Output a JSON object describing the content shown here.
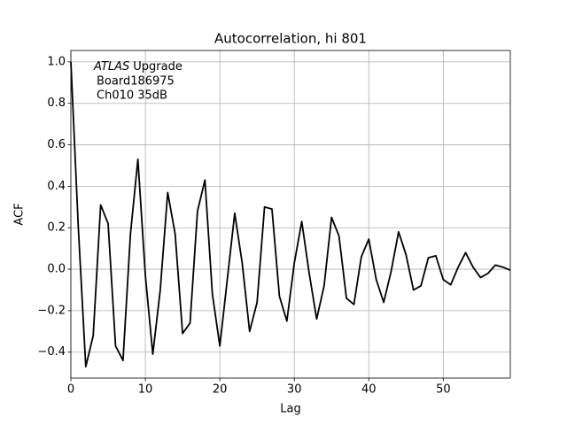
{
  "chart_data": {
    "type": "line",
    "title": "Autocorrelation, hi 801",
    "x_label": "Lag",
    "y_label": "ACF",
    "annotation": {
      "emphasis": "ATLAS",
      "lines": [
        "Upgrade",
        "Board186975",
        "Ch010 35dB"
      ]
    },
    "x": [
      0,
      1,
      2,
      3,
      4,
      5,
      6,
      7,
      8,
      9,
      10,
      11,
      12,
      13,
      14,
      15,
      16,
      17,
      18,
      19,
      20,
      21,
      22,
      23,
      24,
      25,
      26,
      27,
      28,
      29,
      30,
      31,
      32,
      33,
      34,
      35,
      36,
      37,
      38,
      39,
      40,
      41,
      42,
      43,
      44,
      45,
      46,
      47,
      48,
      49,
      50,
      51,
      52,
      53,
      54,
      55,
      56,
      57,
      58,
      59
    ],
    "series": [
      {
        "name": "ACF",
        "color": "#000000",
        "values": [
          1.0,
          0.2,
          -0.47,
          -0.32,
          0.31,
          0.22,
          -0.37,
          -0.44,
          0.17,
          0.53,
          -0.03,
          -0.41,
          -0.1,
          0.37,
          0.17,
          -0.31,
          -0.26,
          0.28,
          0.43,
          -0.12,
          -0.37,
          -0.05,
          0.27,
          0.03,
          -0.3,
          -0.16,
          0.3,
          0.29,
          -0.13,
          -0.25,
          0.03,
          0.23,
          -0.02,
          -0.24,
          -0.08,
          0.25,
          0.16,
          -0.14,
          -0.17,
          0.06,
          0.145,
          -0.05,
          -0.16,
          -0.01,
          0.18,
          0.07,
          -0.1,
          -0.08,
          0.055,
          0.065,
          -0.05,
          -0.075,
          0.01,
          0.08,
          0.01,
          -0.04,
          -0.02,
          0.02,
          0.01,
          -0.005
        ]
      }
    ],
    "xlim": [
      0,
      59
    ],
    "xticks": [
      0,
      10,
      20,
      30,
      40,
      50
    ],
    "ylim": [
      -0.525,
      1.055
    ],
    "yticks": [
      {
        "value": -0.4,
        "label": "−0.4"
      },
      {
        "value": -0.2,
        "label": "−0.2"
      },
      {
        "value": 0,
        "label": "0.0"
      },
      0.2,
      0.4,
      0.6,
      0.8,
      {
        "value": 1.0,
        "label": "1.0"
      }
    ],
    "grid": true
  }
}
